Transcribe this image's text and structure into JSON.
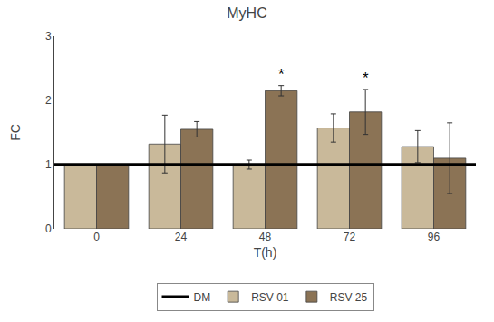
{
  "chart_data": {
    "type": "bar",
    "title": "MyHC",
    "xlabel": "T(h)",
    "ylabel": "FC",
    "categories": [
      "0",
      "24",
      "48",
      "72",
      "96"
    ],
    "series": [
      {
        "name": "RSV 01",
        "color": "#C9B99A",
        "values": [
          1.0,
          1.32,
          1.0,
          1.57,
          1.28
        ],
        "errors": [
          0.0,
          0.45,
          0.07,
          0.22,
          0.25
        ]
      },
      {
        "name": "RSV 25",
        "color": "#8B7355",
        "values": [
          1.0,
          1.55,
          2.15,
          1.82,
          1.1
        ],
        "errors": [
          0.0,
          0.12,
          0.08,
          0.35,
          0.55
        ]
      }
    ],
    "hlines": [
      {
        "name": "DM",
        "y": 1,
        "color": "#000000"
      }
    ],
    "annotations": [
      {
        "text": "*",
        "category": "48",
        "series": "RSV 25"
      },
      {
        "text": "*",
        "category": "72",
        "series": "RSV 25"
      }
    ],
    "ylim": [
      0,
      3
    ],
    "yticks": [
      0,
      1,
      2,
      3
    ],
    "grid": false,
    "legend": "bottom"
  }
}
